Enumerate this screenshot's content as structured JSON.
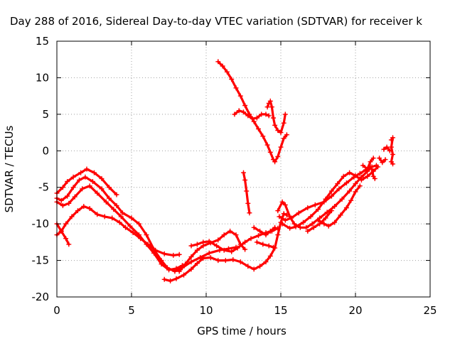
{
  "chart_data": {
    "type": "scatter",
    "title": "Day 288 of 2016, Sidereal Day-to-day VTEC variation (SDTVAR) for receiver k",
    "xlabel": "GPS time / hours",
    "ylabel": "SDTVAR / TECUs",
    "xlim": [
      0,
      25
    ],
    "ylim": [
      -20,
      15
    ],
    "xticks": [
      "0",
      "5",
      "10",
      "15",
      "20",
      "25"
    ],
    "yticks": [
      "15",
      "10",
      "5",
      "0",
      "-5",
      "-10",
      "-15",
      "-20"
    ],
    "grid": true,
    "marker": "+",
    "color": "#ff0000",
    "series": [
      {
        "points": [
          [
            0,
            -5.8
          ],
          [
            0.4,
            -5
          ],
          [
            0.7,
            -4.2
          ],
          [
            1.1,
            -3.6
          ],
          [
            1.6,
            -3
          ],
          [
            2,
            -2.5
          ],
          [
            2.5,
            -3
          ],
          [
            3,
            -3.8
          ],
          [
            3.5,
            -5
          ],
          [
            4,
            -6
          ]
        ]
      },
      {
        "points": [
          [
            0,
            -6.5
          ],
          [
            0.3,
            -6.8
          ],
          [
            0.7,
            -6.2
          ],
          [
            1.1,
            -5
          ],
          [
            1.5,
            -4
          ],
          [
            1.9,
            -3.6
          ],
          [
            2.4,
            -4.2
          ],
          [
            3,
            -5.2
          ],
          [
            3.5,
            -6.5
          ],
          [
            4,
            -7.5
          ],
          [
            4.4,
            -8.5
          ],
          [
            5,
            -9.2
          ],
          [
            5.5,
            -10
          ],
          [
            6,
            -11.5
          ],
          [
            6.5,
            -13.5
          ],
          [
            7,
            -15
          ],
          [
            7.4,
            -16
          ],
          [
            7.9,
            -16.5
          ],
          [
            8.4,
            -16
          ],
          [
            9,
            -15.2
          ],
          [
            9.6,
            -14.6
          ],
          [
            10.2,
            -14
          ],
          [
            10.9,
            -13.6
          ],
          [
            11.5,
            -13.4
          ],
          [
            12,
            -13.2
          ]
        ]
      },
      {
        "points": [
          [
            0,
            -7
          ],
          [
            0.4,
            -7.5
          ],
          [
            0.8,
            -7.2
          ],
          [
            1.2,
            -6.3
          ],
          [
            1.7,
            -5.2
          ],
          [
            2.2,
            -4.8
          ],
          [
            2.7,
            -5.8
          ],
          [
            3.3,
            -7
          ],
          [
            3.8,
            -8
          ],
          [
            4.3,
            -9
          ],
          [
            4.9,
            -10.3
          ],
          [
            5.5,
            -11.5
          ],
          [
            6,
            -12.8
          ],
          [
            6.5,
            -14
          ],
          [
            7,
            -15.5
          ],
          [
            7.5,
            -16.3
          ],
          [
            8,
            -16.1
          ],
          [
            8.4,
            -15.7
          ]
        ]
      },
      {
        "points": [
          [
            0,
            -10
          ],
          [
            0.3,
            -11
          ],
          [
            0.6,
            -12
          ],
          [
            0.8,
            -12.8
          ]
        ]
      },
      {
        "points": [
          [
            0,
            -11.5
          ],
          [
            0.3,
            -11
          ],
          [
            0.6,
            -10
          ],
          [
            1,
            -9
          ],
          [
            1.4,
            -8.2
          ],
          [
            1.8,
            -7.6
          ],
          [
            2.2,
            -7.9
          ],
          [
            2.7,
            -8.7
          ],
          [
            3.2,
            -9
          ],
          [
            3.7,
            -9.2
          ],
          [
            4.2,
            -9.8
          ],
          [
            4.6,
            -10.5
          ],
          [
            5.1,
            -11.2
          ],
          [
            5.6,
            -12
          ],
          [
            6.1,
            -12.8
          ],
          [
            6.6,
            -13.6
          ],
          [
            7.2,
            -14.1
          ],
          [
            7.8,
            -14.3
          ],
          [
            8.2,
            -14.2
          ]
        ]
      },
      {
        "points": [
          [
            7.2,
            -17.6
          ],
          [
            7.6,
            -17.8
          ],
          [
            8,
            -17.5
          ],
          [
            8.5,
            -17
          ],
          [
            9,
            -16.2
          ],
          [
            9.4,
            -15.4
          ],
          [
            9.8,
            -14.7
          ],
          [
            10.3,
            -14.6
          ],
          [
            10.8,
            -15
          ],
          [
            11.3,
            -15
          ],
          [
            11.8,
            -14.9
          ],
          [
            12.3,
            -15.2
          ],
          [
            12.8,
            -15.8
          ],
          [
            13.2,
            -16.2
          ],
          [
            13.6,
            -15.8
          ],
          [
            14,
            -15.2
          ],
          [
            14.3,
            -14.4
          ],
          [
            14.6,
            -13.3
          ],
          [
            14.8,
            -11.5
          ],
          [
            15,
            -9.8
          ],
          [
            15.2,
            -8.6
          ],
          [
            15.4,
            -8.8
          ]
        ]
      },
      {
        "points": [
          [
            8.2,
            -16.5
          ],
          [
            8.6,
            -15.5
          ],
          [
            9,
            -14.5
          ],
          [
            9.4,
            -13.6
          ],
          [
            9.8,
            -13
          ],
          [
            10.3,
            -12.6
          ],
          [
            10.8,
            -12.2
          ],
          [
            11.2,
            -11.5
          ],
          [
            11.6,
            -11
          ],
          [
            12,
            -11.5
          ],
          [
            12.3,
            -12.8
          ],
          [
            12.6,
            -13.5
          ]
        ]
      },
      {
        "points": [
          [
            9,
            -13
          ],
          [
            9.4,
            -12.8
          ],
          [
            9.8,
            -12.5
          ],
          [
            10.2,
            -12.4
          ],
          [
            10.7,
            -13
          ],
          [
            11.2,
            -13.6
          ],
          [
            11.7,
            -13.8
          ],
          [
            12.1,
            -13.3
          ],
          [
            12.6,
            -12.5
          ],
          [
            13,
            -12
          ],
          [
            13.5,
            -11.6
          ],
          [
            14,
            -11.2
          ],
          [
            14.4,
            -11
          ],
          [
            14.8,
            -10.6
          ]
        ]
      },
      {
        "points": [
          [
            12.5,
            -3
          ],
          [
            12.6,
            -4
          ],
          [
            12.7,
            -5.5
          ],
          [
            12.8,
            -7.2
          ],
          [
            12.9,
            -8.5
          ]
        ]
      },
      {
        "points": [
          [
            13.2,
            -10.5
          ],
          [
            13.6,
            -11
          ],
          [
            14,
            -11.5
          ],
          [
            14.3,
            -11
          ],
          [
            14.6,
            -10.5
          ]
        ]
      },
      {
        "points": [
          [
            13.4,
            -12.5
          ],
          [
            13.8,
            -12.8
          ],
          [
            14.2,
            -13
          ],
          [
            14.5,
            -13.2
          ]
        ]
      },
      {
        "points": [
          [
            14.8,
            -8.2
          ],
          [
            15.1,
            -7
          ],
          [
            15.3,
            -7.4
          ],
          [
            15.6,
            -9
          ],
          [
            15.9,
            -10
          ],
          [
            16.3,
            -10.5
          ],
          [
            16.7,
            -10.5
          ],
          [
            17.1,
            -10
          ],
          [
            17.6,
            -9.2
          ],
          [
            18.1,
            -8.4
          ],
          [
            18.6,
            -7.6
          ],
          [
            19.1,
            -6.6
          ],
          [
            19.6,
            -5.5
          ],
          [
            20,
            -4.5
          ],
          [
            20.4,
            -3.6
          ],
          [
            20.8,
            -2.8
          ],
          [
            21.1,
            -2.2
          ],
          [
            21.4,
            -2
          ]
        ]
      },
      {
        "points": [
          [
            14.9,
            -9
          ],
          [
            15.3,
            -9.5
          ],
          [
            15.7,
            -9.2
          ],
          [
            16.2,
            -8.5
          ],
          [
            16.8,
            -7.8
          ],
          [
            17.3,
            -7.4
          ],
          [
            17.9,
            -7
          ],
          [
            18.4,
            -6.2
          ],
          [
            18.9,
            -5.2
          ],
          [
            19.4,
            -4.4
          ],
          [
            19.9,
            -3.6
          ],
          [
            20.3,
            -3.1
          ],
          [
            20.7,
            -2.6
          ],
          [
            21,
            -2.2
          ]
        ]
      },
      {
        "points": [
          [
            15.1,
            -10
          ],
          [
            15.6,
            -10.6
          ],
          [
            16,
            -10.4
          ],
          [
            16.5,
            -9.8
          ],
          [
            17,
            -9
          ],
          [
            17.5,
            -8
          ],
          [
            18,
            -6.6
          ],
          [
            18.4,
            -5.5
          ],
          [
            18.8,
            -4.5
          ],
          [
            19.2,
            -3.5
          ],
          [
            19.6,
            -3
          ],
          [
            20,
            -3.4
          ],
          [
            20.4,
            -4
          ],
          [
            20.8,
            -3.5
          ],
          [
            21.2,
            -2.8
          ],
          [
            21.5,
            -2.2
          ]
        ]
      },
      {
        "points": [
          [
            16.8,
            -11
          ],
          [
            17.2,
            -10.5
          ],
          [
            17.6,
            -10
          ],
          [
            18,
            -9.2
          ],
          [
            18.4,
            -8.2
          ]
        ]
      },
      {
        "points": [
          [
            17.5,
            -9.5
          ],
          [
            17.9,
            -10
          ],
          [
            18.2,
            -10.3
          ],
          [
            18.6,
            -9.8
          ],
          [
            19,
            -8.8
          ],
          [
            19.4,
            -7.8
          ],
          [
            19.7,
            -6.8
          ],
          [
            20,
            -5.6
          ],
          [
            20.3,
            -4.8
          ]
        ]
      },
      {
        "points": [
          [
            10.8,
            12.2
          ],
          [
            11.1,
            11.6
          ],
          [
            11.4,
            10.8
          ],
          [
            11.7,
            9.8
          ],
          [
            12,
            8.6
          ],
          [
            12.3,
            7.5
          ],
          [
            12.6,
            6.2
          ],
          [
            12.9,
            5
          ],
          [
            13.2,
            4
          ],
          [
            13.5,
            3
          ],
          [
            13.8,
            2
          ],
          [
            14.1,
            0.8
          ],
          [
            14.3,
            -0.2
          ],
          [
            14.5,
            -1.2
          ],
          [
            14.6,
            -1.5
          ],
          [
            14.8,
            -0.8
          ],
          [
            15,
            0.5
          ],
          [
            15.2,
            1.7
          ],
          [
            15.4,
            2.2
          ]
        ]
      },
      {
        "points": [
          [
            11.9,
            5
          ],
          [
            12.2,
            5.5
          ],
          [
            12.5,
            5.3
          ],
          [
            12.8,
            4.8
          ],
          [
            13.1,
            4.4
          ],
          [
            13.4,
            4.5
          ],
          [
            13.7,
            5
          ],
          [
            14,
            5
          ],
          [
            14.2,
            4.8
          ]
        ]
      },
      {
        "points": [
          [
            14.1,
            6
          ],
          [
            14.2,
            6.5
          ],
          [
            14.3,
            6.8
          ],
          [
            14.4,
            6
          ],
          [
            14.5,
            4.5
          ],
          [
            14.6,
            3.5
          ],
          [
            14.8,
            2.8
          ],
          [
            15,
            2.5
          ],
          [
            15.2,
            3.8
          ],
          [
            15.3,
            5
          ]
        ]
      },
      {
        "points": [
          [
            20.5,
            -2
          ],
          [
            20.8,
            -2.5
          ],
          [
            21,
            -1.5
          ],
          [
            21.2,
            -1
          ]
        ]
      },
      {
        "points": [
          [
            21.1,
            -2.5
          ],
          [
            21.2,
            -3.5
          ],
          [
            21.3,
            -3.8
          ]
        ]
      },
      {
        "points": [
          [
            21.9,
            0.2
          ],
          [
            22.1,
            0.5
          ],
          [
            22.3,
            0
          ]
        ]
      },
      {
        "points": [
          [
            21.6,
            -1
          ],
          [
            21.8,
            -1.6
          ],
          [
            22,
            -1.2
          ]
        ]
      },
      {
        "points": [
          [
            22.4,
            1.5
          ],
          [
            22.5,
            1.8
          ],
          [
            22.4,
            0.5
          ],
          [
            22.5,
            -0.5
          ],
          [
            22.4,
            -1.5
          ],
          [
            22.5,
            -1.8
          ]
        ]
      }
    ]
  }
}
